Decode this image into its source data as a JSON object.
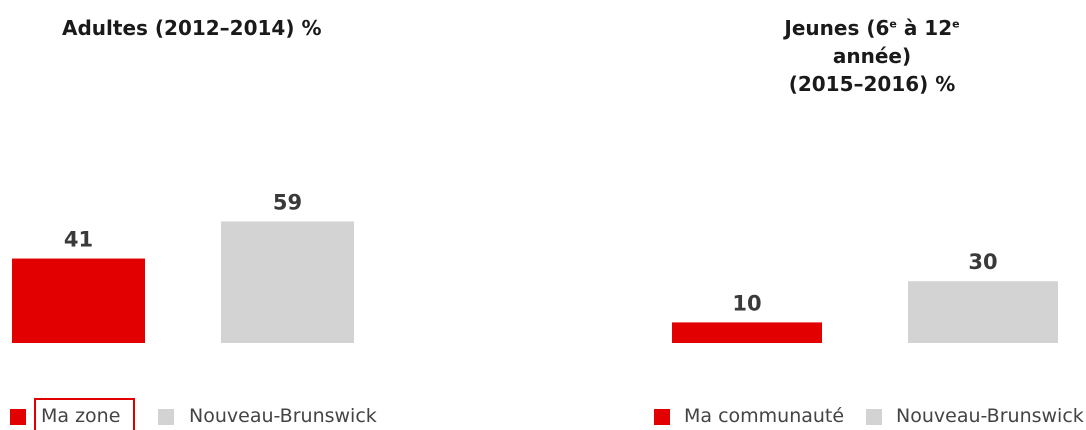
{
  "colors": {
    "primary": "#e30000",
    "secondary": "#d3d3d3",
    "label": "#3a3a3a"
  },
  "titles": {
    "adults": "Adultes (2012–2014) %",
    "youth_line1_a": "Jeunes (6",
    "youth_sup1": "e",
    "youth_line1_b": " à 12",
    "youth_sup2": "e",
    "youth_line1_c": " année)",
    "youth_line2": "(2015–2016) %"
  },
  "legends": {
    "left": [
      {
        "label": "Ma zone",
        "color": "#e30000"
      },
      {
        "label": "Nouveau-Brunswick",
        "color": "#d3d3d3"
      }
    ],
    "right": [
      {
        "label": "Ma communauté",
        "color": "#e30000"
      },
      {
        "label": "Nouveau-Brunswick",
        "color": "#d3d3d3"
      }
    ]
  },
  "chart_data": [
    {
      "type": "bar",
      "title": "Adultes (2012–2014) %",
      "categories": [
        "Ma zone",
        "Nouveau-Brunswick"
      ],
      "values": [
        41,
        59
      ],
      "colors": [
        "#e30000",
        "#d3d3d3"
      ]
    },
    {
      "type": "bar",
      "title": "Jeunes (6e à 12e année) (2015–2016) %",
      "categories": [
        "Ma communauté",
        "Nouveau-Brunswick"
      ],
      "values": [
        10,
        30
      ],
      "colors": [
        "#e30000",
        "#d3d3d3"
      ]
    }
  ]
}
